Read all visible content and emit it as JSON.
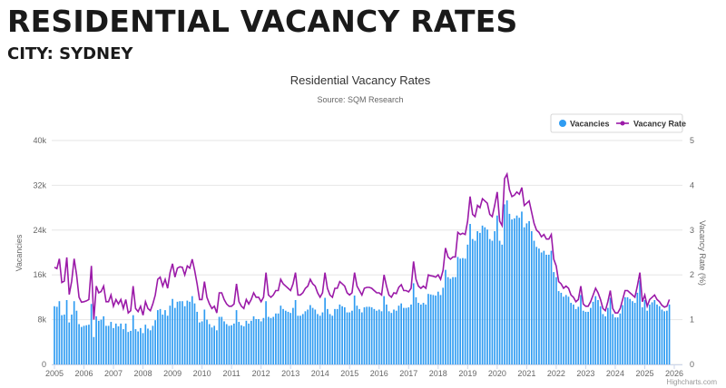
{
  "page": {
    "heading": "RESIDENTIAL VACANCY RATES",
    "subheading": "CITY: SYDNEY"
  },
  "credit": "Highcharts.com",
  "chart_data": {
    "type": "bar+line",
    "title": "Residential Vacancy Rates",
    "subtitle": "Source: SQM Research",
    "x_ticks": [
      "2005",
      "2006",
      "2007",
      "2008",
      "2009",
      "2010",
      "2011",
      "2012",
      "2013",
      "2014",
      "2015",
      "2016",
      "2017",
      "2018",
      "2019",
      "2020",
      "2021",
      "2022",
      "2023",
      "2024",
      "2025",
      "2026"
    ],
    "xlim": [
      2005,
      2026
    ],
    "y_left": {
      "label": "Vacancies",
      "ticks": [
        "0",
        "8k",
        "16k",
        "24k",
        "32k",
        "40k"
      ],
      "ylim": [
        0,
        40000
      ]
    },
    "y_right": {
      "label": "Vacancy Rate (%)",
      "ticks": [
        "0",
        "1",
        "2",
        "3",
        "4",
        "5"
      ],
      "ylim": [
        0,
        5
      ]
    },
    "grid": true,
    "legend": {
      "placement": "top-right",
      "items": [
        "Vacancies",
        "Vacancy Rate"
      ]
    },
    "colors": {
      "Vacancies": "#2f9cf2",
      "Vacancy Rate": "#9b1aa8"
    },
    "frequency": "monthly",
    "series": [
      {
        "name": "Vacancies",
        "type": "column",
        "values_by_year": {
          "2005": [
            10400,
            10300,
            11300,
            8800,
            8900,
            11500,
            7500,
            8900,
            11300,
            9600,
            7200,
            6700
          ],
          "2006": [
            6900,
            7000,
            7100,
            10800,
            4900,
            8600,
            7800,
            8000,
            8600,
            6900,
            6900,
            7600
          ],
          "2007": [
            6500,
            7300,
            6800,
            7300,
            6300,
            7300,
            5800,
            6000,
            8800,
            6300,
            5900,
            6500
          ],
          "2008": [
            5600,
            7100,
            6400,
            6100,
            6900,
            7900,
            9700,
            9900,
            8900,
            9700,
            8700,
            10500
          ],
          "2009": [
            11700,
            10100,
            11200,
            11300,
            11300,
            10400,
            11400,
            11200,
            12200,
            10900,
            9400,
            7500
          ],
          "2010": [
            7700,
            9800,
            8000,
            7200,
            6600,
            6900,
            6100,
            8500,
            8500,
            7700,
            7200,
            6900
          ],
          "2011": [
            7000,
            7300,
            9700,
            7600,
            7000,
            6800,
            7800,
            7300,
            7800,
            8600,
            8100,
            8100
          ],
          "2012": [
            7700,
            8300,
            11300,
            8500,
            8300,
            8500,
            9100,
            9100,
            10500,
            9900,
            9600,
            9400
          ],
          "2013": [
            9200,
            10100,
            11500,
            8700,
            8700,
            9000,
            9500,
            9800,
            10600,
            10100,
            9800,
            9000
          ],
          "2014": [
            8700,
            9300,
            11900,
            9900,
            9000,
            8700,
            9900,
            9900,
            10700,
            10400,
            10200,
            9300
          ],
          "2015": [
            9300,
            9600,
            12300,
            10500,
            9900,
            9300,
            10200,
            10300,
            10300,
            10200,
            9900,
            9600
          ],
          "2016": [
            9800,
            9500,
            12200,
            10700,
            9500,
            9200,
            9800,
            9600,
            10500,
            10900,
            10100,
            10100
          ],
          "2017": [
            10200,
            10700,
            14500,
            12000,
            11000,
            10700,
            11000,
            10700,
            12600,
            12500,
            12400,
            12300
          ],
          "2018": [
            13000,
            12400,
            13700,
            16900,
            15600,
            15300,
            15600,
            15600,
            19200,
            18900,
            19000,
            18900
          ],
          "2019": [
            21400,
            25100,
            22400,
            22100,
            23800,
            23500,
            24800,
            24500,
            24100,
            22400,
            22100,
            23800
          ],
          "2020": [
            26600,
            22100,
            21400,
            28600,
            29300,
            26900,
            25900,
            26100,
            26600,
            26200,
            27300,
            24500
          ],
          "2021": [
            25200,
            25600,
            23800,
            22100,
            21000,
            20700,
            20000,
            20300,
            19600,
            19600,
            20300,
            16500
          ],
          "2022": [
            15600,
            13100,
            12800,
            12100,
            12400,
            12100,
            11000,
            10700,
            9900,
            10300,
            12400,
            9600
          ],
          "2023": [
            9400,
            9400,
            10100,
            11200,
            12200,
            11500,
            10400,
            9000,
            8600,
            10100,
            11900,
            9000
          ],
          "2024": [
            8400,
            8400,
            9100,
            10600,
            12000,
            12000,
            11700,
            11300,
            11000,
            12800,
            15000,
            10200
          ],
          "2025": [
            11500,
            9600,
            10700,
            11100,
            11500,
            10700,
            10400,
            9800,
            9500,
            9600,
            10700
          ]
        }
      },
      {
        "name": "Vacancy Rate",
        "type": "line",
        "values_by_year": {
          "2005": [
            2.17,
            2.14,
            2.36,
            1.83,
            1.86,
            2.39,
            1.56,
            1.86,
            2.36,
            2.0,
            1.5,
            1.39
          ],
          "2006": [
            1.4,
            1.42,
            1.45,
            2.2,
            1.0,
            1.75,
            1.6,
            1.63,
            1.75,
            1.4,
            1.4,
            1.55
          ],
          "2007": [
            1.3,
            1.45,
            1.35,
            1.45,
            1.25,
            1.45,
            1.15,
            1.2,
            1.75,
            1.25,
            1.18,
            1.3
          ],
          "2008": [
            1.1,
            1.4,
            1.25,
            1.2,
            1.35,
            1.55,
            1.9,
            1.95,
            1.75,
            1.9,
            1.7,
            2.05
          ],
          "2009": [
            2.25,
            1.95,
            2.15,
            2.18,
            2.17,
            2.0,
            2.2,
            2.15,
            2.35,
            2.1,
            1.8,
            1.45
          ],
          "2010": [
            1.45,
            1.85,
            1.5,
            1.35,
            1.25,
            1.3,
            1.15,
            1.6,
            1.6,
            1.45,
            1.35,
            1.3
          ],
          "2011": [
            1.3,
            1.35,
            1.8,
            1.4,
            1.3,
            1.25,
            1.45,
            1.35,
            1.45,
            1.6,
            1.5,
            1.5
          ],
          "2012": [
            1.4,
            1.5,
            2.05,
            1.55,
            1.5,
            1.55,
            1.65,
            1.65,
            1.9,
            1.8,
            1.75,
            1.7
          ],
          "2013": [
            1.65,
            1.8,
            2.05,
            1.55,
            1.55,
            1.6,
            1.7,
            1.75,
            1.9,
            1.8,
            1.75,
            1.6
          ],
          "2014": [
            1.5,
            1.6,
            2.05,
            1.7,
            1.55,
            1.5,
            1.7,
            1.7,
            1.85,
            1.8,
            1.75,
            1.6
          ],
          "2015": [
            1.55,
            1.6,
            2.05,
            1.75,
            1.65,
            1.55,
            1.7,
            1.72,
            1.72,
            1.7,
            1.65,
            1.6
          ],
          "2016": [
            1.6,
            1.55,
            2.0,
            1.75,
            1.55,
            1.5,
            1.6,
            1.58,
            1.72,
            1.78,
            1.65,
            1.65
          ],
          "2017": [
            1.62,
            1.7,
            2.3,
            1.9,
            1.75,
            1.7,
            1.75,
            1.7,
            2.0,
            1.98,
            1.97,
            1.95
          ],
          "2018": [
            2.0,
            1.9,
            2.1,
            2.6,
            2.4,
            2.35,
            2.4,
            2.4,
            2.95,
            2.9,
            2.93,
            2.9
          ],
          "2019": [
            3.2,
            3.75,
            3.35,
            3.3,
            3.55,
            3.5,
            3.7,
            3.65,
            3.6,
            3.35,
            3.3,
            3.55
          ],
          "2020": [
            3.85,
            3.2,
            3.1,
            4.15,
            4.25,
            3.9,
            3.75,
            3.78,
            3.85,
            3.8,
            3.95,
            3.55
          ],
          "2021": [
            3.6,
            3.65,
            3.4,
            3.15,
            3.0,
            2.95,
            2.85,
            2.9,
            2.8,
            2.8,
            2.9,
            2.35
          ],
          "2022": [
            2.2,
            1.85,
            1.8,
            1.7,
            1.75,
            1.7,
            1.55,
            1.5,
            1.4,
            1.45,
            1.75,
            1.35
          ],
          "2023": [
            1.3,
            1.3,
            1.4,
            1.55,
            1.7,
            1.6,
            1.45,
            1.25,
            1.2,
            1.4,
            1.65,
            1.25
          ],
          "2024": [
            1.15,
            1.15,
            1.25,
            1.45,
            1.65,
            1.65,
            1.6,
            1.55,
            1.5,
            1.75,
            2.05,
            1.4
          ],
          "2025": [
            1.55,
            1.3,
            1.45,
            1.5,
            1.55,
            1.45,
            1.4,
            1.32,
            1.28,
            1.3,
            1.45
          ]
        }
      }
    ]
  }
}
